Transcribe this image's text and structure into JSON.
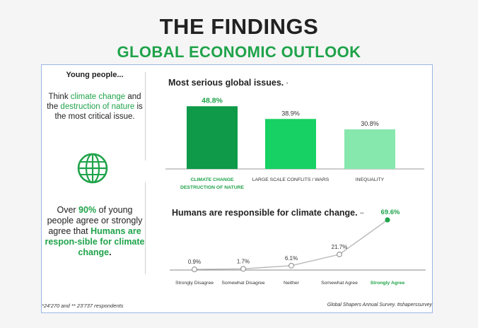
{
  "header": {
    "title": "THE FINDINGS",
    "subtitle": "GLOBAL ECONOMIC OUTLOOK"
  },
  "left_panel": {
    "heading": "Young people...",
    "p1_part1": "Think ",
    "p1_part2": "climate change",
    "p1_part3": " and the ",
    "p1_part4": "destruction of nature",
    "p1_part5": " is the most critical issue.",
    "p2_part1": "Over ",
    "p2_part2": "90%",
    "p2_part3": " of young people agree or strongly agree that ",
    "p2_part4": "Humans are respon-sible for climate change",
    "p2_part5": ".",
    "icon": "globe-icon"
  },
  "footer": {
    "footnote": "*24'270 and  ** 23'737 respondents",
    "source": "Global Shapers Annual Survey. #shaperssurvey"
  },
  "colors": {
    "accent": "#1fa34a",
    "bar_dark": "#0e9a48",
    "bar_mid": "#17d164",
    "bar_light": "#86e8ad",
    "line": "#b8b8b8"
  },
  "chart_data": [
    {
      "type": "bar",
      "title": "Most serious global issues.",
      "title_mark": "*",
      "categories": [
        "CLIMATE CHANGE\nDESTRUCTION OF NATURE",
        "LARGE SCALE CONFLITS / WARS",
        "INEQUALITY"
      ],
      "values": [
        48.8,
        38.9,
        30.8
      ],
      "value_labels": [
        "48.8%",
        "38.9%",
        "30.8%"
      ],
      "highlight_index": 0,
      "ylim": [
        0,
        55
      ],
      "grid": false
    },
    {
      "type": "line",
      "title": "Humans are responsible for climate change.",
      "title_mark": "**",
      "categories": [
        "Strongly Disagree",
        "Somewhat Disagree",
        "Neither",
        "Somewhat Agree",
        "Strongly Agree"
      ],
      "values": [
        0.9,
        1.7,
        6.1,
        21.7,
        69.6
      ],
      "value_labels": [
        "0.9%",
        "1.7%",
        "6.1%",
        "21.7%",
        "69.6%"
      ],
      "highlight_index": 4,
      "ylim": [
        0,
        75
      ],
      "grid": false
    }
  ]
}
